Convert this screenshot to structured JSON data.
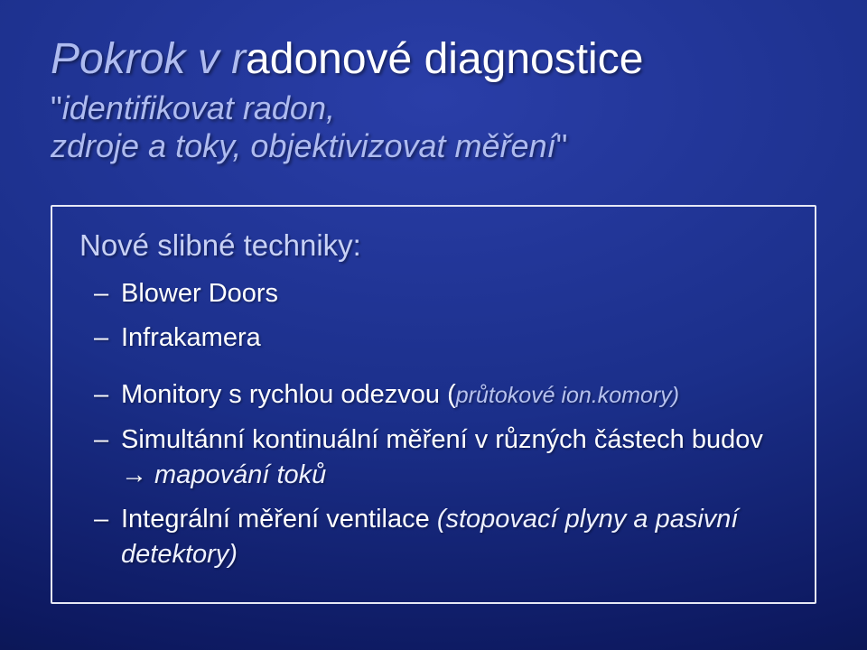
{
  "colors": {
    "background_center": "#2a3ea8",
    "background_edge": "#08113f",
    "accent_text": "#aebbf0",
    "lead_text": "#c8d1f5",
    "body_text": "#ffffff",
    "box_border": "#e6e8f5",
    "italic_small": "#b7c2ee"
  },
  "typography": {
    "title_fontsize": 48,
    "subtitle_fontsize": 36,
    "lead_fontsize": 33,
    "bullet_fontsize": 29,
    "italic_small_fontsize": 25,
    "font_family": "Arial"
  },
  "title": {
    "part1_accent": "Pokrok v r",
    "part1_white": "adonové",
    "part2_white": "diagnostice"
  },
  "subtitle": {
    "open_quote": "\"",
    "line1": "identifikovat radon,",
    "line2_pre": "zdroje a toky, objektivizovat m",
    "line2_post": "ěření",
    "close_quote": "\""
  },
  "lead": "Nové slibné techniky:",
  "bullets_top": [
    "Blower Doors",
    "Infrakamera"
  ],
  "bullet3": {
    "prefix": "Monitory s rychlou odezvou ",
    "paren_open": "(",
    "ital": "průtokové ion.komory)",
    "paren_close": ""
  },
  "bullet4": {
    "line_a": "Simultánní kontinuální měření v různých částech budov ",
    "arrow": "→",
    "line_b": " mapování toků"
  },
  "bullet5": {
    "pre": "Integrální měření ventilace ",
    "ital": "(stopovací plyny a pasivní detektory)"
  }
}
